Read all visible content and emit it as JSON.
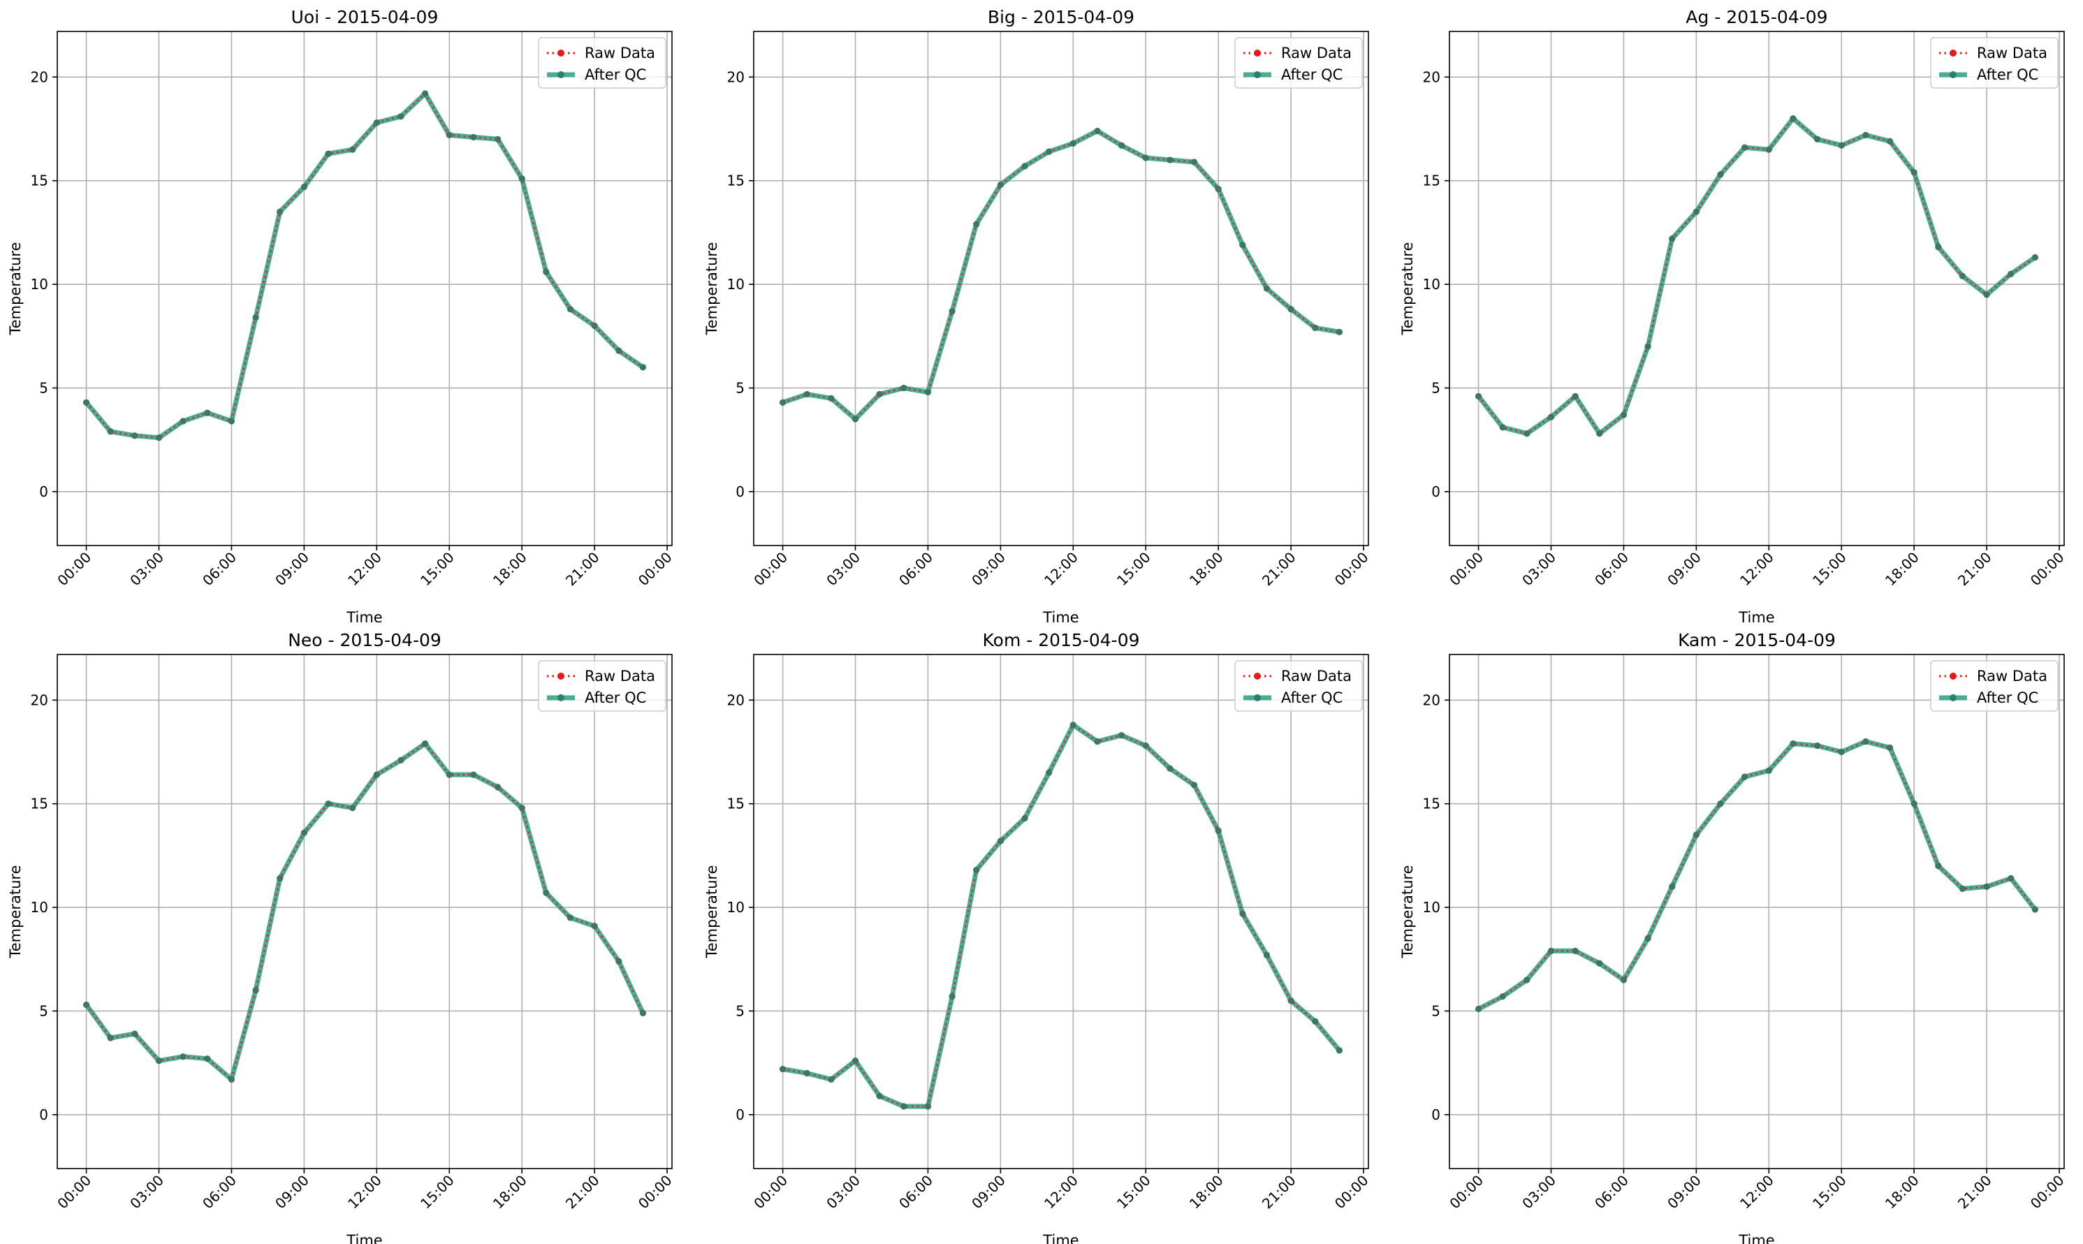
{
  "colors": {
    "raw": "#e8191a",
    "qc": "#2a9d7c",
    "qc_marker": "#2a8070"
  },
  "chart_data": [
    {
      "type": "line",
      "title": "Uoi - 2015-04-09",
      "xlabel": "Time",
      "ylabel": "Temperature",
      "xlim_hours": [
        -1.2,
        24.2
      ],
      "ylim": [
        -2.6,
        22.2
      ],
      "yticks": [
        0,
        5,
        10,
        15,
        20
      ],
      "xtick_hours": [
        0,
        3,
        6,
        9,
        12,
        15,
        18,
        21,
        24
      ],
      "xtick_labels": [
        "00:00",
        "03:00",
        "06:00",
        "09:00",
        "12:00",
        "15:00",
        "18:00",
        "21:00",
        "00:00"
      ],
      "grid": true,
      "legend": "upper-right",
      "x": [
        "00:00",
        "01:00",
        "02:00",
        "03:00",
        "04:00",
        "05:00",
        "06:00",
        "07:00",
        "08:00",
        "09:00",
        "10:00",
        "11:00",
        "12:00",
        "13:00",
        "14:00",
        "15:00",
        "16:00",
        "17:00",
        "18:00",
        "19:00",
        "20:00",
        "21:00",
        "22:00",
        "23:00"
      ],
      "series": [
        {
          "name": "Raw Data",
          "style": "dotted",
          "values": [
            4.3,
            2.9,
            2.7,
            2.6,
            3.4,
            3.8,
            3.4,
            8.4,
            13.5,
            14.7,
            16.3,
            16.5,
            17.8,
            18.1,
            19.2,
            17.2,
            17.1,
            17.0,
            15.1,
            10.6,
            8.8,
            8.0,
            6.8,
            6.0
          ]
        },
        {
          "name": "After QC",
          "style": "solid",
          "values": [
            4.3,
            2.9,
            2.7,
            2.6,
            3.4,
            3.8,
            3.4,
            8.4,
            13.5,
            14.7,
            16.3,
            16.5,
            17.8,
            18.1,
            19.2,
            17.2,
            17.1,
            17.0,
            15.1,
            10.6,
            8.8,
            8.0,
            6.8,
            6.0
          ]
        }
      ]
    },
    {
      "type": "line",
      "title": "Big - 2015-04-09",
      "xlabel": "Time",
      "ylabel": "Temperature",
      "xlim_hours": [
        -1.2,
        24.2
      ],
      "ylim": [
        -2.6,
        22.2
      ],
      "yticks": [
        0,
        5,
        10,
        15,
        20
      ],
      "xtick_hours": [
        0,
        3,
        6,
        9,
        12,
        15,
        18,
        21,
        24
      ],
      "xtick_labels": [
        "00:00",
        "03:00",
        "06:00",
        "09:00",
        "12:00",
        "15:00",
        "18:00",
        "21:00",
        "00:00"
      ],
      "grid": true,
      "legend": "upper-right",
      "x": [
        "00:00",
        "01:00",
        "02:00",
        "03:00",
        "04:00",
        "05:00",
        "06:00",
        "07:00",
        "08:00",
        "09:00",
        "10:00",
        "11:00",
        "12:00",
        "13:00",
        "14:00",
        "15:00",
        "16:00",
        "17:00",
        "18:00",
        "19:00",
        "20:00",
        "21:00",
        "22:00",
        "23:00"
      ],
      "series": [
        {
          "name": "Raw Data",
          "style": "dotted",
          "values": [
            4.3,
            4.7,
            4.5,
            3.5,
            4.7,
            5.0,
            4.8,
            8.7,
            12.9,
            14.8,
            15.7,
            16.4,
            16.8,
            17.4,
            16.7,
            16.1,
            16.0,
            15.9,
            14.6,
            11.9,
            9.8,
            8.8,
            7.9,
            7.7
          ]
        },
        {
          "name": "After QC",
          "style": "solid",
          "values": [
            4.3,
            4.7,
            4.5,
            3.5,
            4.7,
            5.0,
            4.8,
            8.7,
            12.9,
            14.8,
            15.7,
            16.4,
            16.8,
            17.4,
            16.7,
            16.1,
            16.0,
            15.9,
            14.6,
            11.9,
            9.8,
            8.8,
            7.9,
            7.7
          ]
        }
      ]
    },
    {
      "type": "line",
      "title": "Ag - 2015-04-09",
      "xlabel": "Time",
      "ylabel": "Temperature",
      "xlim_hours": [
        -1.2,
        24.2
      ],
      "ylim": [
        -2.6,
        22.2
      ],
      "yticks": [
        0,
        5,
        10,
        15,
        20
      ],
      "xtick_hours": [
        0,
        3,
        6,
        9,
        12,
        15,
        18,
        21,
        24
      ],
      "xtick_labels": [
        "00:00",
        "03:00",
        "06:00",
        "09:00",
        "12:00",
        "15:00",
        "18:00",
        "21:00",
        "00:00"
      ],
      "grid": true,
      "legend": "upper-right",
      "x": [
        "00:00",
        "01:00",
        "02:00",
        "03:00",
        "04:00",
        "05:00",
        "06:00",
        "07:00",
        "08:00",
        "09:00",
        "10:00",
        "11:00",
        "12:00",
        "13:00",
        "14:00",
        "15:00",
        "16:00",
        "17:00",
        "18:00",
        "19:00",
        "20:00",
        "21:00",
        "22:00",
        "23:00"
      ],
      "series": [
        {
          "name": "Raw Data",
          "style": "dotted",
          "values": [
            4.6,
            3.1,
            2.8,
            3.6,
            4.6,
            2.8,
            3.7,
            7.0,
            12.2,
            13.5,
            15.3,
            16.6,
            16.5,
            18.0,
            17.0,
            16.7,
            17.2,
            16.9,
            15.4,
            11.8,
            10.4,
            9.5,
            10.5,
            11.3
          ]
        },
        {
          "name": "After QC",
          "style": "solid",
          "values": [
            4.6,
            3.1,
            2.8,
            3.6,
            4.6,
            2.8,
            3.7,
            7.0,
            12.2,
            13.5,
            15.3,
            16.6,
            16.5,
            18.0,
            17.0,
            16.7,
            17.2,
            16.9,
            15.4,
            11.8,
            10.4,
            9.5,
            10.5,
            11.3
          ]
        }
      ]
    },
    {
      "type": "line",
      "title": "Neo - 2015-04-09",
      "xlabel": "Time",
      "ylabel": "Temperature",
      "xlim_hours": [
        -1.2,
        24.2
      ],
      "ylim": [
        -2.6,
        22.2
      ],
      "yticks": [
        0,
        5,
        10,
        15,
        20
      ],
      "xtick_hours": [
        0,
        3,
        6,
        9,
        12,
        15,
        18,
        21,
        24
      ],
      "xtick_labels": [
        "00:00",
        "03:00",
        "06:00",
        "09:00",
        "12:00",
        "15:00",
        "18:00",
        "21:00",
        "00:00"
      ],
      "grid": true,
      "legend": "upper-right",
      "x": [
        "00:00",
        "01:00",
        "02:00",
        "03:00",
        "04:00",
        "05:00",
        "06:00",
        "07:00",
        "08:00",
        "09:00",
        "10:00",
        "11:00",
        "12:00",
        "13:00",
        "14:00",
        "15:00",
        "16:00",
        "17:00",
        "18:00",
        "19:00",
        "20:00",
        "21:00",
        "22:00",
        "23:00"
      ],
      "series": [
        {
          "name": "Raw Data",
          "style": "dotted",
          "values": [
            5.3,
            3.7,
            3.9,
            2.6,
            2.8,
            2.7,
            1.7,
            6.0,
            11.4,
            13.6,
            15.0,
            14.8,
            16.4,
            17.1,
            17.9,
            16.4,
            16.4,
            15.8,
            14.8,
            10.7,
            9.5,
            9.1,
            7.4,
            4.9
          ]
        },
        {
          "name": "After QC",
          "style": "solid",
          "values": [
            5.3,
            3.7,
            3.9,
            2.6,
            2.8,
            2.7,
            1.7,
            6.0,
            11.4,
            13.6,
            15.0,
            14.8,
            16.4,
            17.1,
            17.9,
            16.4,
            16.4,
            15.8,
            14.8,
            10.7,
            9.5,
            9.1,
            7.4,
            4.9
          ]
        }
      ]
    },
    {
      "type": "line",
      "title": "Kom - 2015-04-09",
      "xlabel": "Time",
      "ylabel": "Temperature",
      "xlim_hours": [
        -1.2,
        24.2
      ],
      "ylim": [
        -2.6,
        22.2
      ],
      "yticks": [
        0,
        5,
        10,
        15,
        20
      ],
      "xtick_hours": [
        0,
        3,
        6,
        9,
        12,
        15,
        18,
        21,
        24
      ],
      "xtick_labels": [
        "00:00",
        "03:00",
        "06:00",
        "09:00",
        "12:00",
        "15:00",
        "18:00",
        "21:00",
        "00:00"
      ],
      "grid": true,
      "legend": "upper-right",
      "x": [
        "00:00",
        "01:00",
        "02:00",
        "03:00",
        "04:00",
        "05:00",
        "06:00",
        "07:00",
        "08:00",
        "09:00",
        "10:00",
        "11:00",
        "12:00",
        "13:00",
        "14:00",
        "15:00",
        "16:00",
        "17:00",
        "18:00",
        "19:00",
        "20:00",
        "21:00",
        "22:00",
        "23:00"
      ],
      "series": [
        {
          "name": "Raw Data",
          "style": "dotted",
          "values": [
            2.2,
            2.0,
            1.7,
            2.6,
            0.9,
            0.4,
            0.4,
            5.7,
            11.8,
            13.2,
            14.3,
            16.5,
            18.8,
            18.0,
            18.3,
            17.8,
            16.7,
            15.9,
            13.7,
            9.7,
            7.7,
            5.5,
            4.5,
            3.1
          ]
        },
        {
          "name": "After QC",
          "style": "solid",
          "values": [
            2.2,
            2.0,
            1.7,
            2.6,
            0.9,
            0.4,
            0.4,
            5.7,
            11.8,
            13.2,
            14.3,
            16.5,
            18.8,
            18.0,
            18.3,
            17.8,
            16.7,
            15.9,
            13.7,
            9.7,
            7.7,
            5.5,
            4.5,
            3.1
          ]
        }
      ]
    },
    {
      "type": "line",
      "title": "Kam - 2015-04-09",
      "xlabel": "Time",
      "ylabel": "Temperature",
      "xlim_hours": [
        -1.2,
        24.2
      ],
      "ylim": [
        -2.6,
        22.2
      ],
      "yticks": [
        0,
        5,
        10,
        15,
        20
      ],
      "xtick_hours": [
        0,
        3,
        6,
        9,
        12,
        15,
        18,
        21,
        24
      ],
      "xtick_labels": [
        "00:00",
        "03:00",
        "06:00",
        "09:00",
        "12:00",
        "15:00",
        "18:00",
        "21:00",
        "00:00"
      ],
      "grid": true,
      "legend": "upper-right",
      "x": [
        "00:00",
        "01:00",
        "02:00",
        "03:00",
        "04:00",
        "05:00",
        "06:00",
        "07:00",
        "08:00",
        "09:00",
        "10:00",
        "11:00",
        "12:00",
        "13:00",
        "14:00",
        "15:00",
        "16:00",
        "17:00",
        "18:00",
        "19:00",
        "20:00",
        "21:00",
        "22:00",
        "23:00"
      ],
      "series": [
        {
          "name": "Raw Data",
          "style": "dotted",
          "values": [
            5.1,
            5.7,
            6.5,
            7.9,
            7.9,
            7.3,
            6.5,
            8.5,
            11.0,
            13.5,
            15.0,
            16.3,
            16.6,
            17.9,
            17.8,
            17.5,
            18.0,
            17.7,
            15.0,
            12.0,
            10.9,
            11.0,
            11.4,
            9.9
          ]
        },
        {
          "name": "After QC",
          "style": "solid",
          "values": [
            5.1,
            5.7,
            6.5,
            7.9,
            7.9,
            7.3,
            6.5,
            8.5,
            11.0,
            13.5,
            15.0,
            16.3,
            16.6,
            17.9,
            17.8,
            17.5,
            18.0,
            17.7,
            15.0,
            12.0,
            10.9,
            11.0,
            11.4,
            9.9
          ]
        }
      ]
    }
  ]
}
